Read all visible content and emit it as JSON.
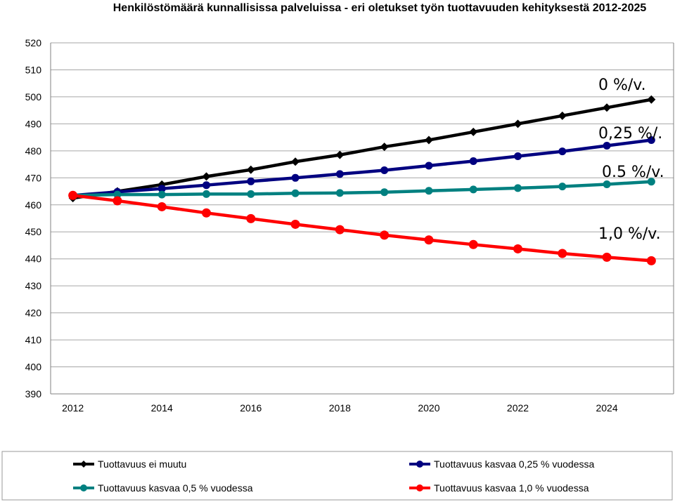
{
  "chart_data": {
    "type": "line",
    "title": "Henkilöstömäärä kunnallisissa palveluissa - eri oletukset työn tuottavuuden kehityksestä 2012-2025",
    "xlabel": "",
    "ylabel": "",
    "x": [
      2012,
      2013,
      2014,
      2015,
      2016,
      2017,
      2018,
      2019,
      2020,
      2021,
      2022,
      2023,
      2024,
      2025
    ],
    "xlim": [
      2011.5,
      2025.5
    ],
    "x_ticks": [
      2012,
      2014,
      2016,
      2018,
      2020,
      2022,
      2024
    ],
    "ylim": [
      390,
      520
    ],
    "y_ticks": [
      390,
      400,
      410,
      420,
      430,
      440,
      450,
      460,
      470,
      480,
      490,
      500,
      510,
      520
    ],
    "grid": "horizontal",
    "legend_position": "bottom",
    "series": [
      {
        "name": "Tuottavuus ei muutu",
        "color": "#000000",
        "marker": "diamond",
        "values": [
          462.5,
          465,
          467.5,
          470.5,
          473,
          476,
          478.5,
          481.5,
          484,
          487,
          490,
          493,
          496,
          499
        ]
      },
      {
        "name": "Tuottavuus kasvaa 0,25 % vuodessa",
        "color": "#000080",
        "marker": "circle",
        "values": [
          463.5,
          464.8,
          466,
          467.3,
          468.7,
          470,
          471.4,
          472.8,
          474.5,
          476.2,
          478,
          479.8,
          481.9,
          484
        ]
      },
      {
        "name": "Tuottavuus kasvaa 0,5 % vuodessa",
        "color": "#008080",
        "marker": "circle",
        "values": [
          463.5,
          463.8,
          463.8,
          464,
          464,
          464.3,
          464.4,
          464.7,
          465.2,
          465.7,
          466.2,
          466.8,
          467.6,
          468.6
        ]
      },
      {
        "name": "Tuottavuus kasvaa 1,0 % vuodessa",
        "color": "#ff0000",
        "marker": "circle",
        "values": [
          463.5,
          461.5,
          459.3,
          457,
          454.9,
          452.8,
          450.8,
          448.8,
          447,
          445.3,
          443.7,
          442,
          440.6,
          439.3
        ]
      }
    ],
    "annotations": [
      {
        "text": "0 %/v.",
        "series": 0
      },
      {
        "text": "0,25 %/.",
        "series": 1
      },
      {
        "text": "0.5 %/v.",
        "series": 2
      },
      {
        "text": "1,0 %/v.",
        "series": 3
      }
    ]
  }
}
